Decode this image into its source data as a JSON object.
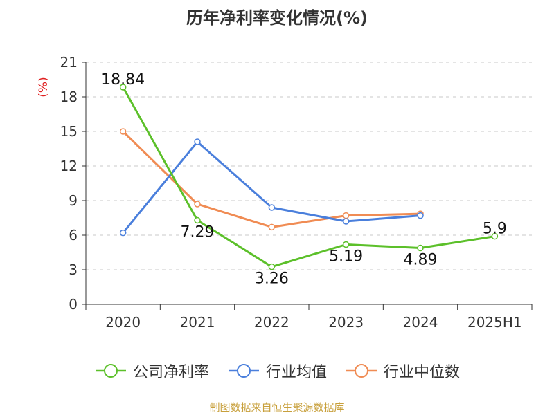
{
  "chart_data": {
    "type": "line",
    "title": "历年净利率变化情况(%)",
    "ylabel": "(%)",
    "xlabel": "",
    "categories": [
      "2020",
      "2021",
      "2022",
      "2023",
      "2024",
      "2025H1"
    ],
    "ylim": [
      0,
      21
    ],
    "yticks": [
      0,
      3,
      6,
      9,
      12,
      15,
      18,
      21
    ],
    "grid": true,
    "legend_position": "bottom",
    "series": [
      {
        "name": "公司净利率",
        "color": "#5cc02a",
        "values": [
          18.84,
          7.29,
          3.26,
          5.19,
          4.89,
          5.9
        ],
        "labels": [
          "18.84",
          "7.29",
          "3.26",
          "5.19",
          "4.89",
          "5.9"
        ]
      },
      {
        "name": "行业均值",
        "color": "#4a7fdc",
        "values": [
          6.2,
          14.1,
          8.4,
          7.2,
          7.7,
          null
        ]
      },
      {
        "name": "行业中位数",
        "color": "#f08c54",
        "values": [
          15.0,
          8.7,
          6.7,
          7.7,
          7.85,
          null
        ]
      }
    ],
    "source": "制图数据来自恒生聚源数据库"
  }
}
